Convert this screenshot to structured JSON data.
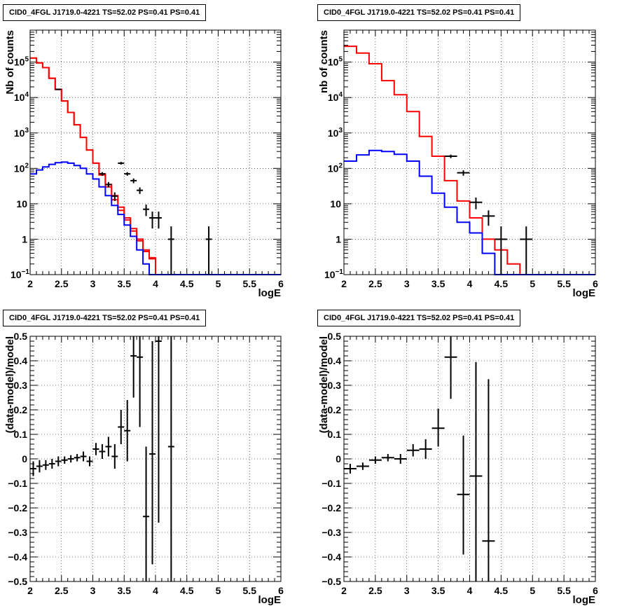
{
  "chart_data": [
    {
      "type": "histogram",
      "title": "CID0_4FGL J1719.0-4221 TS=52.02 PS=0.41 PS=0.41",
      "xlabel": "logE",
      "ylabel": "Nb of counts",
      "xlim": [
        2,
        6
      ],
      "ylim": [
        0.1,
        800000
      ],
      "yscale": "log",
      "grid": true,
      "x_ticks": [
        "2",
        "2.5",
        "3",
        "3.5",
        "4",
        "4.5",
        "5",
        "5.5",
        "6"
      ],
      "y_ticks": [
        {
          "value": 0.1,
          "label": "10",
          "exp": "−1"
        },
        {
          "value": 1,
          "label": "1"
        },
        {
          "value": 10,
          "label": "10"
        },
        {
          "value": 100,
          "label": "10",
          "exp": "2"
        },
        {
          "value": 1000,
          "label": "10",
          "exp": "3"
        },
        {
          "value": 10000,
          "label": "10",
          "exp": "4"
        },
        {
          "value": 100000,
          "label": "10",
          "exp": "5"
        }
      ],
      "bin_edges": [
        2.0,
        2.1,
        2.2,
        2.3,
        2.4,
        2.5,
        2.6,
        2.7,
        2.8,
        2.9,
        3.0,
        3.1,
        3.2,
        3.3,
        3.4,
        3.5,
        3.6,
        3.7,
        3.8,
        3.9,
        4.0,
        4.1,
        4.2,
        4.3,
        4.4,
        4.5,
        4.6,
        4.7,
        4.8,
        4.9,
        5.0,
        5.1,
        5.2,
        5.3,
        5.4,
        5.5,
        5.6,
        5.7,
        5.8,
        5.9,
        6.0
      ],
      "series": [
        {
          "color": "#ff0000",
          "values": [
            130000,
            95000,
            70000,
            35000,
            17000,
            8000,
            3800,
            1700,
            750,
            330,
            140,
            70,
            35,
            17,
            8,
            4,
            2,
            1,
            0.5,
            0.28,
            0.1,
            0.1,
            0.1,
            0.1,
            0.1,
            0.1,
            0.1,
            0.1,
            0.1,
            0.1,
            0.1,
            0.1,
            0.1,
            0.1,
            0.1,
            0.1,
            0.1,
            0.1,
            0.1,
            0.1
          ]
        },
        {
          "color": "#ff0000",
          "values": [
            130000,
            95000,
            70000,
            35000,
            17000,
            8000,
            3800,
            1700,
            750,
            330,
            140,
            65,
            30,
            13,
            6.5,
            3.5,
            1.7,
            0.9,
            0.45,
            0.3,
            0.1,
            0.1,
            0.1,
            0.1,
            0.1,
            0.1,
            0.1,
            0.1,
            0.1,
            0.1,
            0.1,
            0.1,
            0.1,
            0.1,
            0.1,
            0.1,
            0.1,
            0.1,
            0.1,
            0.1
          ]
        },
        {
          "color": "#0000ff",
          "values": [
            70,
            90,
            110,
            130,
            145,
            150,
            140,
            120,
            100,
            70,
            50,
            30,
            17,
            9,
            5,
            2.5,
            1.2,
            0.5,
            0.2,
            0.1,
            0.1,
            0.1,
            0.1,
            0.1,
            0.1,
            0.1,
            0.1,
            0.1,
            0.1,
            0.1,
            0.1,
            0.1,
            0.1,
            0.1,
            0.1,
            0.1,
            0.1,
            0.1,
            0.1,
            0.1
          ]
        }
      ],
      "data_points": [
        {
          "x": 2.45,
          "y": 17000,
          "xerr": 0.05,
          "ylo": 16800,
          "yhi": 17200
        },
        {
          "x": 3.15,
          "y": 70,
          "xerr": 0.05,
          "ylo": 62,
          "yhi": 78
        },
        {
          "x": 3.25,
          "y": 35,
          "xerr": 0.05,
          "ylo": 29,
          "yhi": 41
        },
        {
          "x": 3.35,
          "y": 16.5,
          "xerr": 0.05,
          "ylo": 12,
          "yhi": 21
        },
        {
          "x": 3.45,
          "y": 140,
          "xerr": 0.05,
          "ylo": 128,
          "yhi": 152
        },
        {
          "x": 3.55,
          "y": 70,
          "xerr": 0.05,
          "ylo": 62,
          "yhi": 78
        },
        {
          "x": 3.65,
          "y": 45,
          "xerr": 0.05,
          "ylo": 38,
          "yhi": 52
        },
        {
          "x": 3.75,
          "y": 24,
          "xerr": 0.05,
          "ylo": 19,
          "yhi": 29
        },
        {
          "x": 3.85,
          "y": 7,
          "xerr": 0.05,
          "ylo": 4.5,
          "yhi": 9.5
        },
        {
          "x": 3.95,
          "y": 4,
          "xerr": 0.05,
          "ylo": 2,
          "yhi": 6
        },
        {
          "x": 4.05,
          "y": 4,
          "xerr": 0.05,
          "ylo": 2,
          "yhi": 6
        },
        {
          "x": 4.25,
          "y": 1,
          "xerr": 0.05,
          "ylo": 0.1,
          "yhi": 2.3
        },
        {
          "x": 4.85,
          "y": 1,
          "xerr": 0.05,
          "ylo": 0.1,
          "yhi": 2.3
        }
      ]
    },
    {
      "type": "histogram",
      "title": "CID0_4FGL J1719.0-4221 TS=52.02 PS=0.41 PS=0.41",
      "xlabel": "logE",
      "ylabel": "nb of counts",
      "xlim": [
        2,
        6
      ],
      "ylim": [
        0.1,
        800000
      ],
      "yscale": "log",
      "grid": true,
      "x_ticks": [
        "2",
        "2.5",
        "3",
        "3.5",
        "4",
        "4.5",
        "5",
        "5.5",
        "6"
      ],
      "y_ticks": [
        {
          "value": 0.1,
          "label": "10",
          "exp": "−1"
        },
        {
          "value": 1,
          "label": "1"
        },
        {
          "value": 10,
          "label": "10"
        },
        {
          "value": 100,
          "label": "10",
          "exp": "2"
        },
        {
          "value": 1000,
          "label": "10",
          "exp": "3"
        },
        {
          "value": 10000,
          "label": "10",
          "exp": "4"
        },
        {
          "value": 100000,
          "label": "10",
          "exp": "5"
        }
      ],
      "bin_edges": [
        2.0,
        2.2,
        2.4,
        2.6,
        2.8,
        3.0,
        3.2,
        3.4,
        3.6,
        3.8,
        4.0,
        4.2,
        4.4,
        4.6,
        4.8,
        5.0,
        5.2,
        5.4,
        5.6,
        5.8,
        6.0
      ],
      "series": [
        {
          "color": "#ff0000",
          "values": [
            280000,
            180000,
            90000,
            30000,
            12000,
            4000,
            800,
            220,
            45,
            12,
            4,
            1,
            0.5,
            0.2,
            0.1,
            0.1,
            0.1,
            0.1,
            0.1,
            0.1
          ]
        },
        {
          "color": "#0000ff",
          "values": [
            160,
            240,
            320,
            300,
            250,
            160,
            60,
            20,
            8,
            3,
            1.5,
            0.4,
            0.1,
            0.1,
            0.1,
            0.1,
            0.1,
            0.1,
            0.1,
            0.1
          ]
        }
      ],
      "data_points": [
        {
          "x": 3.7,
          "y": 220,
          "xerr": 0.1,
          "ylo": 195,
          "yhi": 245
        },
        {
          "x": 3.9,
          "y": 75,
          "xerr": 0.1,
          "ylo": 62,
          "yhi": 88
        },
        {
          "x": 4.1,
          "y": 11,
          "xerr": 0.1,
          "ylo": 7,
          "yhi": 15
        },
        {
          "x": 4.3,
          "y": 4.5,
          "xerr": 0.1,
          "ylo": 2.4,
          "yhi": 6.5
        },
        {
          "x": 4.5,
          "y": 1,
          "xerr": 0.1,
          "ylo": 0.1,
          "yhi": 2.3
        },
        {
          "x": 4.9,
          "y": 1,
          "xerr": 0.1,
          "ylo": 0.1,
          "yhi": 2.3
        }
      ]
    },
    {
      "type": "scatter",
      "title": "CID0_4FGL J1719.0-4221 TS=52.02 PS=0.41 PS=0.41",
      "xlabel": "logE",
      "ylabel": "(data-model)/model",
      "xlim": [
        2,
        6
      ],
      "ylim": [
        -0.5,
        0.5
      ],
      "yscale": "linear",
      "grid": true,
      "x_ticks": [
        "2",
        "2.5",
        "3",
        "3.5",
        "4",
        "4.5",
        "5",
        "5.5",
        "6"
      ],
      "y_ticks": [
        {
          "value": -0.5,
          "label": "−0.5"
        },
        {
          "value": -0.4,
          "label": "−0.4"
        },
        {
          "value": -0.3,
          "label": "−0.3"
        },
        {
          "value": -0.2,
          "label": "−0.2"
        },
        {
          "value": -0.1,
          "label": "−0.1"
        },
        {
          "value": 0,
          "label": "0"
        },
        {
          "value": 0.1,
          "label": "0.1"
        },
        {
          "value": 0.2,
          "label": "0.2"
        },
        {
          "value": 0.3,
          "label": "0.3"
        },
        {
          "value": 0.4,
          "label": "0.4"
        },
        {
          "value": 0.5,
          "label": "0.5"
        }
      ],
      "data_points": [
        {
          "x": 2.05,
          "y": -0.04,
          "xerr": 0.05,
          "ylo": -0.07,
          "yhi": -0.01
        },
        {
          "x": 2.15,
          "y": -0.03,
          "xerr": 0.05,
          "ylo": -0.055,
          "yhi": -0.005
        },
        {
          "x": 2.25,
          "y": -0.025,
          "xerr": 0.05,
          "ylo": -0.045,
          "yhi": -0.005
        },
        {
          "x": 2.35,
          "y": -0.02,
          "xerr": 0.05,
          "ylo": -0.04,
          "yhi": 0
        },
        {
          "x": 2.45,
          "y": -0.01,
          "xerr": 0.05,
          "ylo": -0.03,
          "yhi": 0.01
        },
        {
          "x": 2.55,
          "y": -0.005,
          "xerr": 0.05,
          "ylo": -0.02,
          "yhi": 0.01
        },
        {
          "x": 2.65,
          "y": 0,
          "xerr": 0.05,
          "ylo": -0.015,
          "yhi": 0.015
        },
        {
          "x": 2.75,
          "y": 0.005,
          "xerr": 0.05,
          "ylo": -0.01,
          "yhi": 0.02
        },
        {
          "x": 2.85,
          "y": 0.01,
          "xerr": 0.05,
          "ylo": -0.01,
          "yhi": 0.03
        },
        {
          "x": 2.95,
          "y": -0.01,
          "xerr": 0.05,
          "ylo": -0.03,
          "yhi": 0.01
        },
        {
          "x": 3.05,
          "y": 0.04,
          "xerr": 0.05,
          "ylo": 0.015,
          "yhi": 0.065
        },
        {
          "x": 3.15,
          "y": 0.03,
          "xerr": 0.05,
          "ylo": 0.0,
          "yhi": 0.06
        },
        {
          "x": 3.25,
          "y": 0.05,
          "xerr": 0.05,
          "ylo": 0.01,
          "yhi": 0.09
        },
        {
          "x": 3.35,
          "y": 0.01,
          "xerr": 0.05,
          "ylo": -0.04,
          "yhi": 0.06
        },
        {
          "x": 3.45,
          "y": 0.13,
          "xerr": 0.05,
          "ylo": 0.06,
          "yhi": 0.2
        },
        {
          "x": 3.55,
          "y": 0.115,
          "xerr": 0.05,
          "ylo": -0.01,
          "yhi": 0.24
        },
        {
          "x": 3.65,
          "y": 0.42,
          "xerr": 0.05,
          "ylo": 0.25,
          "yhi": 0.6
        },
        {
          "x": 3.75,
          "y": 0.415,
          "xerr": 0.05,
          "ylo": 0.13,
          "yhi": 0.7
        },
        {
          "x": 3.85,
          "y": -0.235,
          "xerr": 0.05,
          "ylo": -0.52,
          "yhi": 0.05
        },
        {
          "x": 3.95,
          "y": 0.02,
          "xerr": 0.05,
          "ylo": -0.43,
          "yhi": 0.48
        },
        {
          "x": 4.05,
          "y": 0.48,
          "xerr": 0.05,
          "ylo": -0.26,
          "yhi": 1.2
        },
        {
          "x": 4.25,
          "y": 0.05,
          "xerr": 0.05,
          "ylo": -0.6,
          "yhi": 0.7
        }
      ]
    },
    {
      "type": "scatter",
      "title": "CID0_4FGL J1719.0-4221 TS=52.02 PS=0.41 PS=0.41",
      "xlabel": "logE",
      "ylabel": "(data-model)/model",
      "xlim": [
        2,
        6
      ],
      "ylim": [
        -0.5,
        0.5
      ],
      "yscale": "linear",
      "grid": true,
      "x_ticks": [
        "2",
        "2.5",
        "3",
        "3.5",
        "4",
        "4.5",
        "5",
        "5.5",
        "6"
      ],
      "y_ticks": [
        {
          "value": -0.5,
          "label": "−0.5"
        },
        {
          "value": -0.4,
          "label": "−0.4"
        },
        {
          "value": -0.3,
          "label": "−0.3"
        },
        {
          "value": -0.2,
          "label": "−0.2"
        },
        {
          "value": -0.1,
          "label": "−0.1"
        },
        {
          "value": 0,
          "label": "0"
        },
        {
          "value": 0.1,
          "label": "0.1"
        },
        {
          "value": 0.2,
          "label": "0.2"
        },
        {
          "value": 0.3,
          "label": "0.3"
        },
        {
          "value": 0.4,
          "label": "0.4"
        },
        {
          "value": 0.5,
          "label": "0.5"
        }
      ],
      "data_points": [
        {
          "x": 2.1,
          "y": -0.04,
          "xerr": 0.1,
          "ylo": -0.06,
          "yhi": -0.02
        },
        {
          "x": 2.3,
          "y": -0.03,
          "xerr": 0.1,
          "ylo": -0.045,
          "yhi": -0.015
        },
        {
          "x": 2.5,
          "y": -0.005,
          "xerr": 0.1,
          "ylo": -0.02,
          "yhi": 0.01
        },
        {
          "x": 2.7,
          "y": 0.005,
          "xerr": 0.1,
          "ylo": -0.01,
          "yhi": 0.02
        },
        {
          "x": 2.9,
          "y": 0.0,
          "xerr": 0.1,
          "ylo": -0.02,
          "yhi": 0.02
        },
        {
          "x": 3.1,
          "y": 0.035,
          "xerr": 0.1,
          "ylo": 0.01,
          "yhi": 0.06
        },
        {
          "x": 3.3,
          "y": 0.04,
          "xerr": 0.1,
          "ylo": 0.0,
          "yhi": 0.08
        },
        {
          "x": 3.5,
          "y": 0.125,
          "xerr": 0.1,
          "ylo": 0.05,
          "yhi": 0.205
        },
        {
          "x": 3.7,
          "y": 0.415,
          "xerr": 0.1,
          "ylo": 0.245,
          "yhi": 0.6
        },
        {
          "x": 3.9,
          "y": -0.145,
          "xerr": 0.1,
          "ylo": -0.39,
          "yhi": 0.095
        },
        {
          "x": 4.1,
          "y": -0.07,
          "xerr": 0.1,
          "ylo": -0.55,
          "yhi": 0.395
        },
        {
          "x": 4.3,
          "y": -0.335,
          "xerr": 0.1,
          "ylo": -0.55,
          "yhi": 0.325
        }
      ]
    }
  ]
}
